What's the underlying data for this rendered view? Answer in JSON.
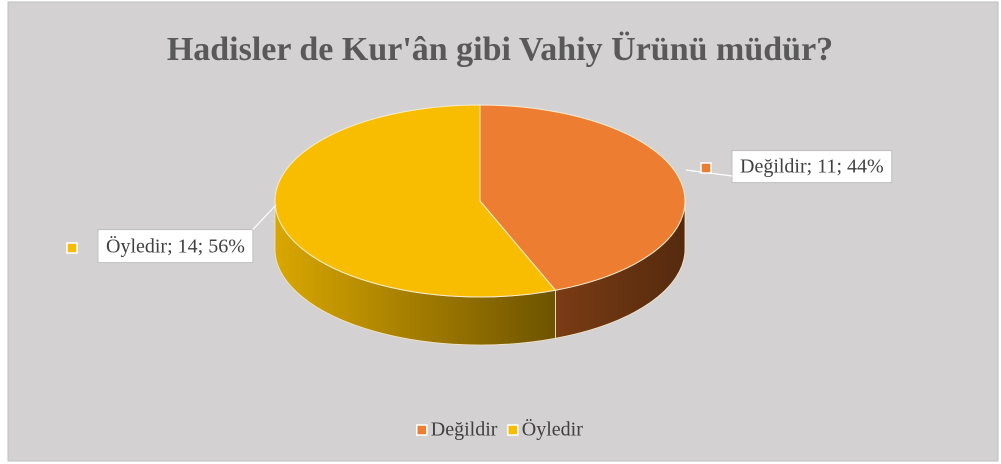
{
  "chart_data": {
    "type": "pie",
    "title": "Hadisler de Kur'ân gibi Vahiy Ürünü müdür?",
    "categories": [
      "Değildir",
      "Öyledir"
    ],
    "values": [
      11,
      14
    ],
    "value_labels": [
      "Değildir; 11; 44%",
      "Öyledir; 14; 56%"
    ],
    "colors": [
      "#ed7d31",
      "#f9bd00"
    ],
    "legend": "bottom"
  }
}
